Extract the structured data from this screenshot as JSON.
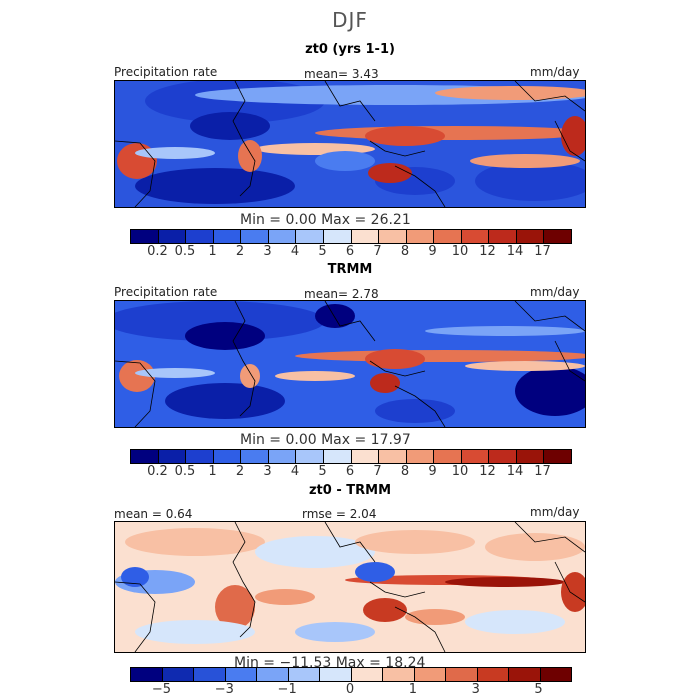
{
  "season": "DJF",
  "panels": [
    {
      "title": "zt0 (yrs 1-1)",
      "left_label": "Precipitation rate",
      "center_label": "mean=   3.43",
      "units": "mm/day",
      "minmax": "Min =    0.00 Max =  26.21",
      "tick_labels": [
        "0.2",
        "0.5",
        "1",
        "2",
        "3",
        "4",
        "5",
        "6",
        "7",
        "8",
        "9",
        "10",
        "12",
        "14",
        "17"
      ]
    },
    {
      "title": "TRMM",
      "left_label": "Precipitation rate",
      "center_label": "mean=   2.78",
      "units": "mm/day",
      "minmax": "Min =    0.00 Max =  17.97",
      "tick_labels": [
        "0.2",
        "0.5",
        "1",
        "2",
        "3",
        "4",
        "5",
        "6",
        "7",
        "8",
        "9",
        "10",
        "12",
        "14",
        "17"
      ]
    },
    {
      "title": "zt0 - TRMM",
      "left_label": "mean =   0.64",
      "center_label": "rmse =   2.04",
      "units": "mm/day",
      "minmax": "Min = −11.53 Max =  18.24",
      "tick_labels": [
        "−5",
        "−3",
        "−1",
        "0",
        "1",
        "3",
        "5"
      ]
    }
  ],
  "colors": {
    "abs_scale": [
      "#00007f",
      "#0a1fa8",
      "#1d3fcf",
      "#2f5ee6",
      "#4a7cf0",
      "#7aa4f7",
      "#a8c6fa",
      "#d6e6fb",
      "#fbe0d0",
      "#f8c0a4",
      "#f19b78",
      "#e67452",
      "#d84b33",
      "#bd2a1c",
      "#9a1409",
      "#6e0000"
    ],
    "diff_scale": [
      "#00007f",
      "#0f2ab0",
      "#2852d8",
      "#4a7cf0",
      "#7aa4f7",
      "#a8c6fa",
      "#d6e6fb",
      "#fbe0d0",
      "#f8c0a4",
      "#f19b78",
      "#e06a4a",
      "#c83a22",
      "#9a1409",
      "#6e0000"
    ]
  }
}
